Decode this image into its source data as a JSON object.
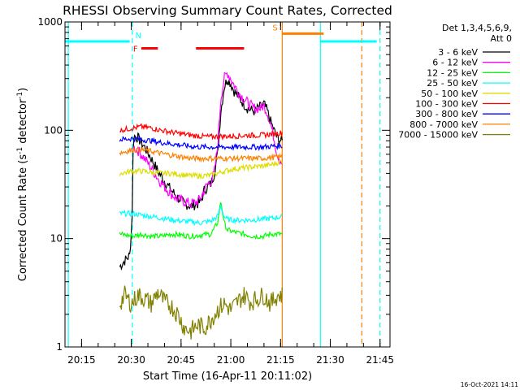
{
  "chart_data": {
    "type": "line",
    "title": "RHESSI Observing Summary Count Rates, Corrected",
    "xlabel": "Start Time (16-Apr-11 20:11:02)",
    "ylabel": "Corrected Count Rate (s",
    "ylabel_sup1": "-1",
    "ylabel_mid": " detector",
    "ylabel_sup2": "-1",
    "ylabel_end": ")",
    "y_scale": "log",
    "ylim": [
      1,
      1000
    ],
    "xlim_minutes_after_start": [
      -1,
      97
    ],
    "x_ticks": [
      {
        "label": "20:15",
        "t": 4
      },
      {
        "label": "20:30",
        "t": 19
      },
      {
        "label": "20:45",
        "t": 34
      },
      {
        "label": "21:00",
        "t": 49
      },
      {
        "label": "21:15",
        "t": 64
      },
      {
        "label": "21:30",
        "t": 79
      },
      {
        "label": "21:45",
        "t": 94
      }
    ],
    "y_ticks": [
      {
        "label": "1",
        "v": 1
      },
      {
        "label": "10",
        "v": 10
      },
      {
        "label": "100",
        "v": 100
      },
      {
        "label": "1000",
        "v": 1000
      }
    ],
    "legend_header": [
      "Det 1,3,4,5,6,9,",
      "Att 0"
    ],
    "legend_placement": "right",
    "footer_date": "16-Oct-2021 14:11",
    "data_coverage_minutes": [
      15.5,
      64.5
    ],
    "series": [
      {
        "name": "3 - 6 keV",
        "color": "#000000",
        "points": [
          [
            15.5,
            5.5
          ],
          [
            16.5,
            6
          ],
          [
            17.5,
            6.5
          ],
          [
            18.5,
            7
          ],
          [
            19.2,
            14
          ],
          [
            19.6,
            90
          ],
          [
            21,
            85
          ],
          [
            23,
            70
          ],
          [
            25,
            55
          ],
          [
            27,
            42
          ],
          [
            29,
            34
          ],
          [
            31,
            28
          ],
          [
            33,
            24
          ],
          [
            35,
            21
          ],
          [
            37,
            20
          ],
          [
            39,
            21
          ],
          [
            40,
            22
          ],
          [
            41,
            28
          ],
          [
            42,
            30
          ],
          [
            43,
            32
          ],
          [
            44,
            40
          ],
          [
            45,
            60
          ],
          [
            46,
            150
          ],
          [
            47,
            250
          ],
          [
            48,
            300
          ],
          [
            49,
            270
          ],
          [
            50,
            230
          ],
          [
            52,
            190
          ],
          [
            54,
            160
          ],
          [
            56,
            150
          ],
          [
            58,
            165
          ],
          [
            59,
            175
          ],
          [
            60,
            150
          ],
          [
            61,
            120
          ],
          [
            62,
            100
          ],
          [
            63,
            85
          ],
          [
            64.5,
            78
          ]
        ]
      },
      {
        "name": "6 - 12 keV",
        "color": "#ff00ff",
        "points": [
          [
            19.6,
            70
          ],
          [
            21,
            65
          ],
          [
            23,
            55
          ],
          [
            25,
            45
          ],
          [
            27,
            36
          ],
          [
            29,
            30
          ],
          [
            31,
            26
          ],
          [
            33,
            23
          ],
          [
            35,
            22
          ],
          [
            37,
            21
          ],
          [
            39,
            22
          ],
          [
            40,
            24
          ],
          [
            41,
            28
          ],
          [
            42,
            32
          ],
          [
            43,
            34
          ],
          [
            44,
            40
          ],
          [
            45,
            70
          ],
          [
            46,
            200
          ],
          [
            47,
            300
          ],
          [
            48,
            340
          ],
          [
            49,
            300
          ],
          [
            50,
            260
          ],
          [
            52,
            210
          ],
          [
            54,
            180
          ],
          [
            56,
            160
          ],
          [
            58,
            160
          ],
          [
            59,
            170
          ],
          [
            60,
            145
          ],
          [
            61,
            115
          ],
          [
            62,
            85
          ],
          [
            63,
            60
          ],
          [
            64.5,
            50
          ]
        ]
      },
      {
        "name": "12 - 25 keV",
        "color": "#00ff00",
        "points": [
          [
            15.5,
            11
          ],
          [
            19.6,
            10.5
          ],
          [
            22,
            11
          ],
          [
            25,
            10.5
          ],
          [
            28,
            10.5
          ],
          [
            31,
            11
          ],
          [
            34,
            10.8
          ],
          [
            37,
            10.5
          ],
          [
            40,
            10.8
          ],
          [
            43,
            11
          ],
          [
            45,
            14
          ],
          [
            46,
            22
          ],
          [
            47,
            14
          ],
          [
            48,
            12
          ],
          [
            50,
            11.5
          ],
          [
            53,
            11
          ],
          [
            56,
            10.5
          ],
          [
            59,
            10.5
          ],
          [
            61,
            11
          ],
          [
            64.5,
            11
          ]
        ]
      },
      {
        "name": "25 - 50 keV",
        "color": "#00ffff",
        "points": [
          [
            15.5,
            17
          ],
          [
            19.6,
            17
          ],
          [
            22,
            16.5
          ],
          [
            25,
            16
          ],
          [
            28,
            15.5
          ],
          [
            31,
            15
          ],
          [
            34,
            14.5
          ],
          [
            37,
            14.3
          ],
          [
            40,
            14
          ],
          [
            43,
            14.5
          ],
          [
            45,
            16
          ],
          [
            46,
            20
          ],
          [
            47,
            16
          ],
          [
            48,
            15
          ],
          [
            51,
            14.8
          ],
          [
            54,
            14.8
          ],
          [
            57,
            15
          ],
          [
            60,
            15.3
          ],
          [
            62,
            15.5
          ],
          [
            64.5,
            16
          ]
        ]
      },
      {
        "name": "50 - 100 keV",
        "color": "#dddd00",
        "points": [
          [
            15.5,
            40
          ],
          [
            19.6,
            42
          ],
          [
            22,
            42
          ],
          [
            25,
            41
          ],
          [
            28,
            40
          ],
          [
            31,
            40
          ],
          [
            34,
            39
          ],
          [
            37,
            38
          ],
          [
            40,
            38
          ],
          [
            43,
            38.5
          ],
          [
            45,
            40
          ],
          [
            47,
            42
          ],
          [
            50,
            44
          ],
          [
            53,
            45
          ],
          [
            56,
            46
          ],
          [
            59,
            47
          ],
          [
            61,
            48
          ],
          [
            63,
            50
          ],
          [
            64.5,
            52
          ]
        ]
      },
      {
        "name": "100 - 300 keV",
        "color": "#ff0000",
        "points": [
          [
            15.5,
            100
          ],
          [
            19.6,
            105
          ],
          [
            22,
            108
          ],
          [
            25,
            105
          ],
          [
            28,
            100
          ],
          [
            31,
            96
          ],
          [
            34,
            93
          ],
          [
            37,
            90
          ],
          [
            40,
            88
          ],
          [
            43,
            87
          ],
          [
            46,
            88
          ],
          [
            49,
            88
          ],
          [
            52,
            89
          ],
          [
            55,
            90
          ],
          [
            58,
            90
          ],
          [
            61,
            92
          ],
          [
            64.5,
            95
          ]
        ]
      },
      {
        "name": "300 - 800 keV",
        "color": "#0000ff",
        "points": [
          [
            15.5,
            82
          ],
          [
            19.6,
            84
          ],
          [
            22,
            82
          ],
          [
            25,
            80
          ],
          [
            28,
            77
          ],
          [
            31,
            75
          ],
          [
            34,
            73
          ],
          [
            37,
            71
          ],
          [
            40,
            70
          ],
          [
            43,
            70
          ],
          [
            46,
            70
          ],
          [
            49,
            70
          ],
          [
            52,
            70
          ],
          [
            55,
            70
          ],
          [
            58,
            70
          ],
          [
            61,
            71
          ],
          [
            64.5,
            72
          ]
        ]
      },
      {
        "name": "800 - 7000 keV",
        "color": "#ff8000",
        "points": [
          [
            15.5,
            62
          ],
          [
            19.6,
            66
          ],
          [
            22,
            66
          ],
          [
            25,
            64
          ],
          [
            28,
            61
          ],
          [
            31,
            59
          ],
          [
            34,
            57
          ],
          [
            37,
            55
          ],
          [
            40,
            55
          ],
          [
            43,
            55
          ],
          [
            46,
            55
          ],
          [
            49,
            55
          ],
          [
            52,
            55
          ],
          [
            55,
            55
          ],
          [
            58,
            55
          ],
          [
            61,
            56
          ],
          [
            64.5,
            57
          ]
        ]
      },
      {
        "name": "7000 - 15000 keV",
        "color": "#808000",
        "points": [
          [
            15.5,
            2.5
          ],
          [
            17,
            3
          ],
          [
            19,
            2.5
          ],
          [
            21,
            3
          ],
          [
            23,
            2.8
          ],
          [
            25,
            2.5
          ],
          [
            27,
            3.2
          ],
          [
            29,
            2.6
          ],
          [
            31,
            2.4
          ],
          [
            33,
            2
          ],
          [
            35,
            1.5
          ],
          [
            37,
            1.4
          ],
          [
            39,
            1.6
          ],
          [
            41,
            1.5
          ],
          [
            43,
            1.8
          ],
          [
            45,
            2.2
          ],
          [
            47,
            2.5
          ],
          [
            49,
            2.2
          ],
          [
            51,
            2.6
          ],
          [
            53,
            3
          ],
          [
            55,
            2.6
          ],
          [
            57,
            2.8
          ],
          [
            59,
            3
          ],
          [
            61,
            2.5
          ],
          [
            63,
            3
          ],
          [
            64.5,
            3
          ]
        ]
      }
    ],
    "flags": [
      {
        "label": "F",
        "color": "#ff0000",
        "y": 570,
        "segments": [
          [
            22,
            27
          ],
          [
            38.5,
            53
          ]
        ]
      },
      {
        "label": "S",
        "color": "#ff8000",
        "y": 780,
        "segments": [
          [
            64.5,
            77
          ]
        ]
      },
      {
        "label": "N",
        "color": "#00ffff",
        "y": 660,
        "segments": [
          [
            -1,
            18.5
          ],
          [
            76,
            93
          ]
        ]
      }
    ],
    "vlines": [
      {
        "t": 0,
        "color": "#00ffff",
        "style": "solid"
      },
      {
        "t": 19.3,
        "color": "#00ffff",
        "style": "dashed"
      },
      {
        "t": 64.5,
        "color": "#ff8000",
        "style": "solid"
      },
      {
        "t": 76,
        "color": "#00ffff",
        "style": "solid"
      },
      {
        "t": 88.5,
        "color": "#ff8000",
        "style": "dashed"
      },
      {
        "t": 94,
        "color": "#00ffff",
        "style": "dashed"
      }
    ]
  }
}
